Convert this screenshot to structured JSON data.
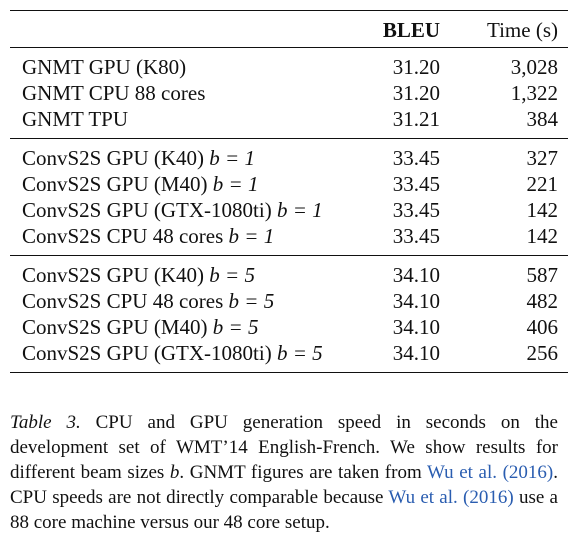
{
  "table": {
    "headers": {
      "name": "",
      "bleu": "BLEU",
      "time": "Time (s)"
    },
    "groups": [
      {
        "rows": [
          {
            "name": "GNMT GPU (K80)",
            "beam": "",
            "bleu": "31.20",
            "time": "3,028"
          },
          {
            "name": "GNMT CPU 88 cores",
            "beam": "",
            "bleu": "31.20",
            "time": "1,322"
          },
          {
            "name": "GNMT TPU",
            "beam": "",
            "bleu": "31.21",
            "time": "384"
          }
        ]
      },
      {
        "rows": [
          {
            "name": "ConvS2S GPU (K40)",
            "beam": "b = 1",
            "bleu": "33.45",
            "time": "327"
          },
          {
            "name": "ConvS2S GPU (M40)",
            "beam": "b = 1",
            "bleu": "33.45",
            "time": "221"
          },
          {
            "name": "ConvS2S GPU (GTX-1080ti)",
            "beam": "b = 1",
            "bleu": "33.45",
            "time": "142"
          },
          {
            "name": "ConvS2S CPU 48 cores",
            "beam": "b = 1",
            "bleu": "33.45",
            "time": "142"
          }
        ]
      },
      {
        "rows": [
          {
            "name": "ConvS2S GPU (K40)",
            "beam": "b = 5",
            "bleu": "34.10",
            "time": "587"
          },
          {
            "name": "ConvS2S CPU 48 cores",
            "beam": "b = 5",
            "bleu": "34.10",
            "time": "482"
          },
          {
            "name": "ConvS2S GPU (M40)",
            "beam": "b = 5",
            "bleu": "34.10",
            "time": "406"
          },
          {
            "name": "ConvS2S GPU (GTX-1080ti)",
            "beam": "b = 5",
            "bleu": "34.10",
            "time": "256"
          }
        ]
      }
    ]
  },
  "caption": {
    "label": "Table 3.",
    "text_1": " CPU and GPU generation speed in seconds on the development set of WMT’14 English-French. We show results for different beam sizes ",
    "beam_var": "b",
    "text_2": ". GNMT figures are taken from ",
    "cite_1": "Wu et al. (2016)",
    "text_3": ". CPU speeds are not directly comparable because ",
    "cite_2": "Wu et al. (2016)",
    "text_4": " use a 88 core machine versus our 48 core setup."
  },
  "colors": {
    "text": "#111111",
    "citation": "#2a5db0",
    "background": "#ffffff"
  }
}
